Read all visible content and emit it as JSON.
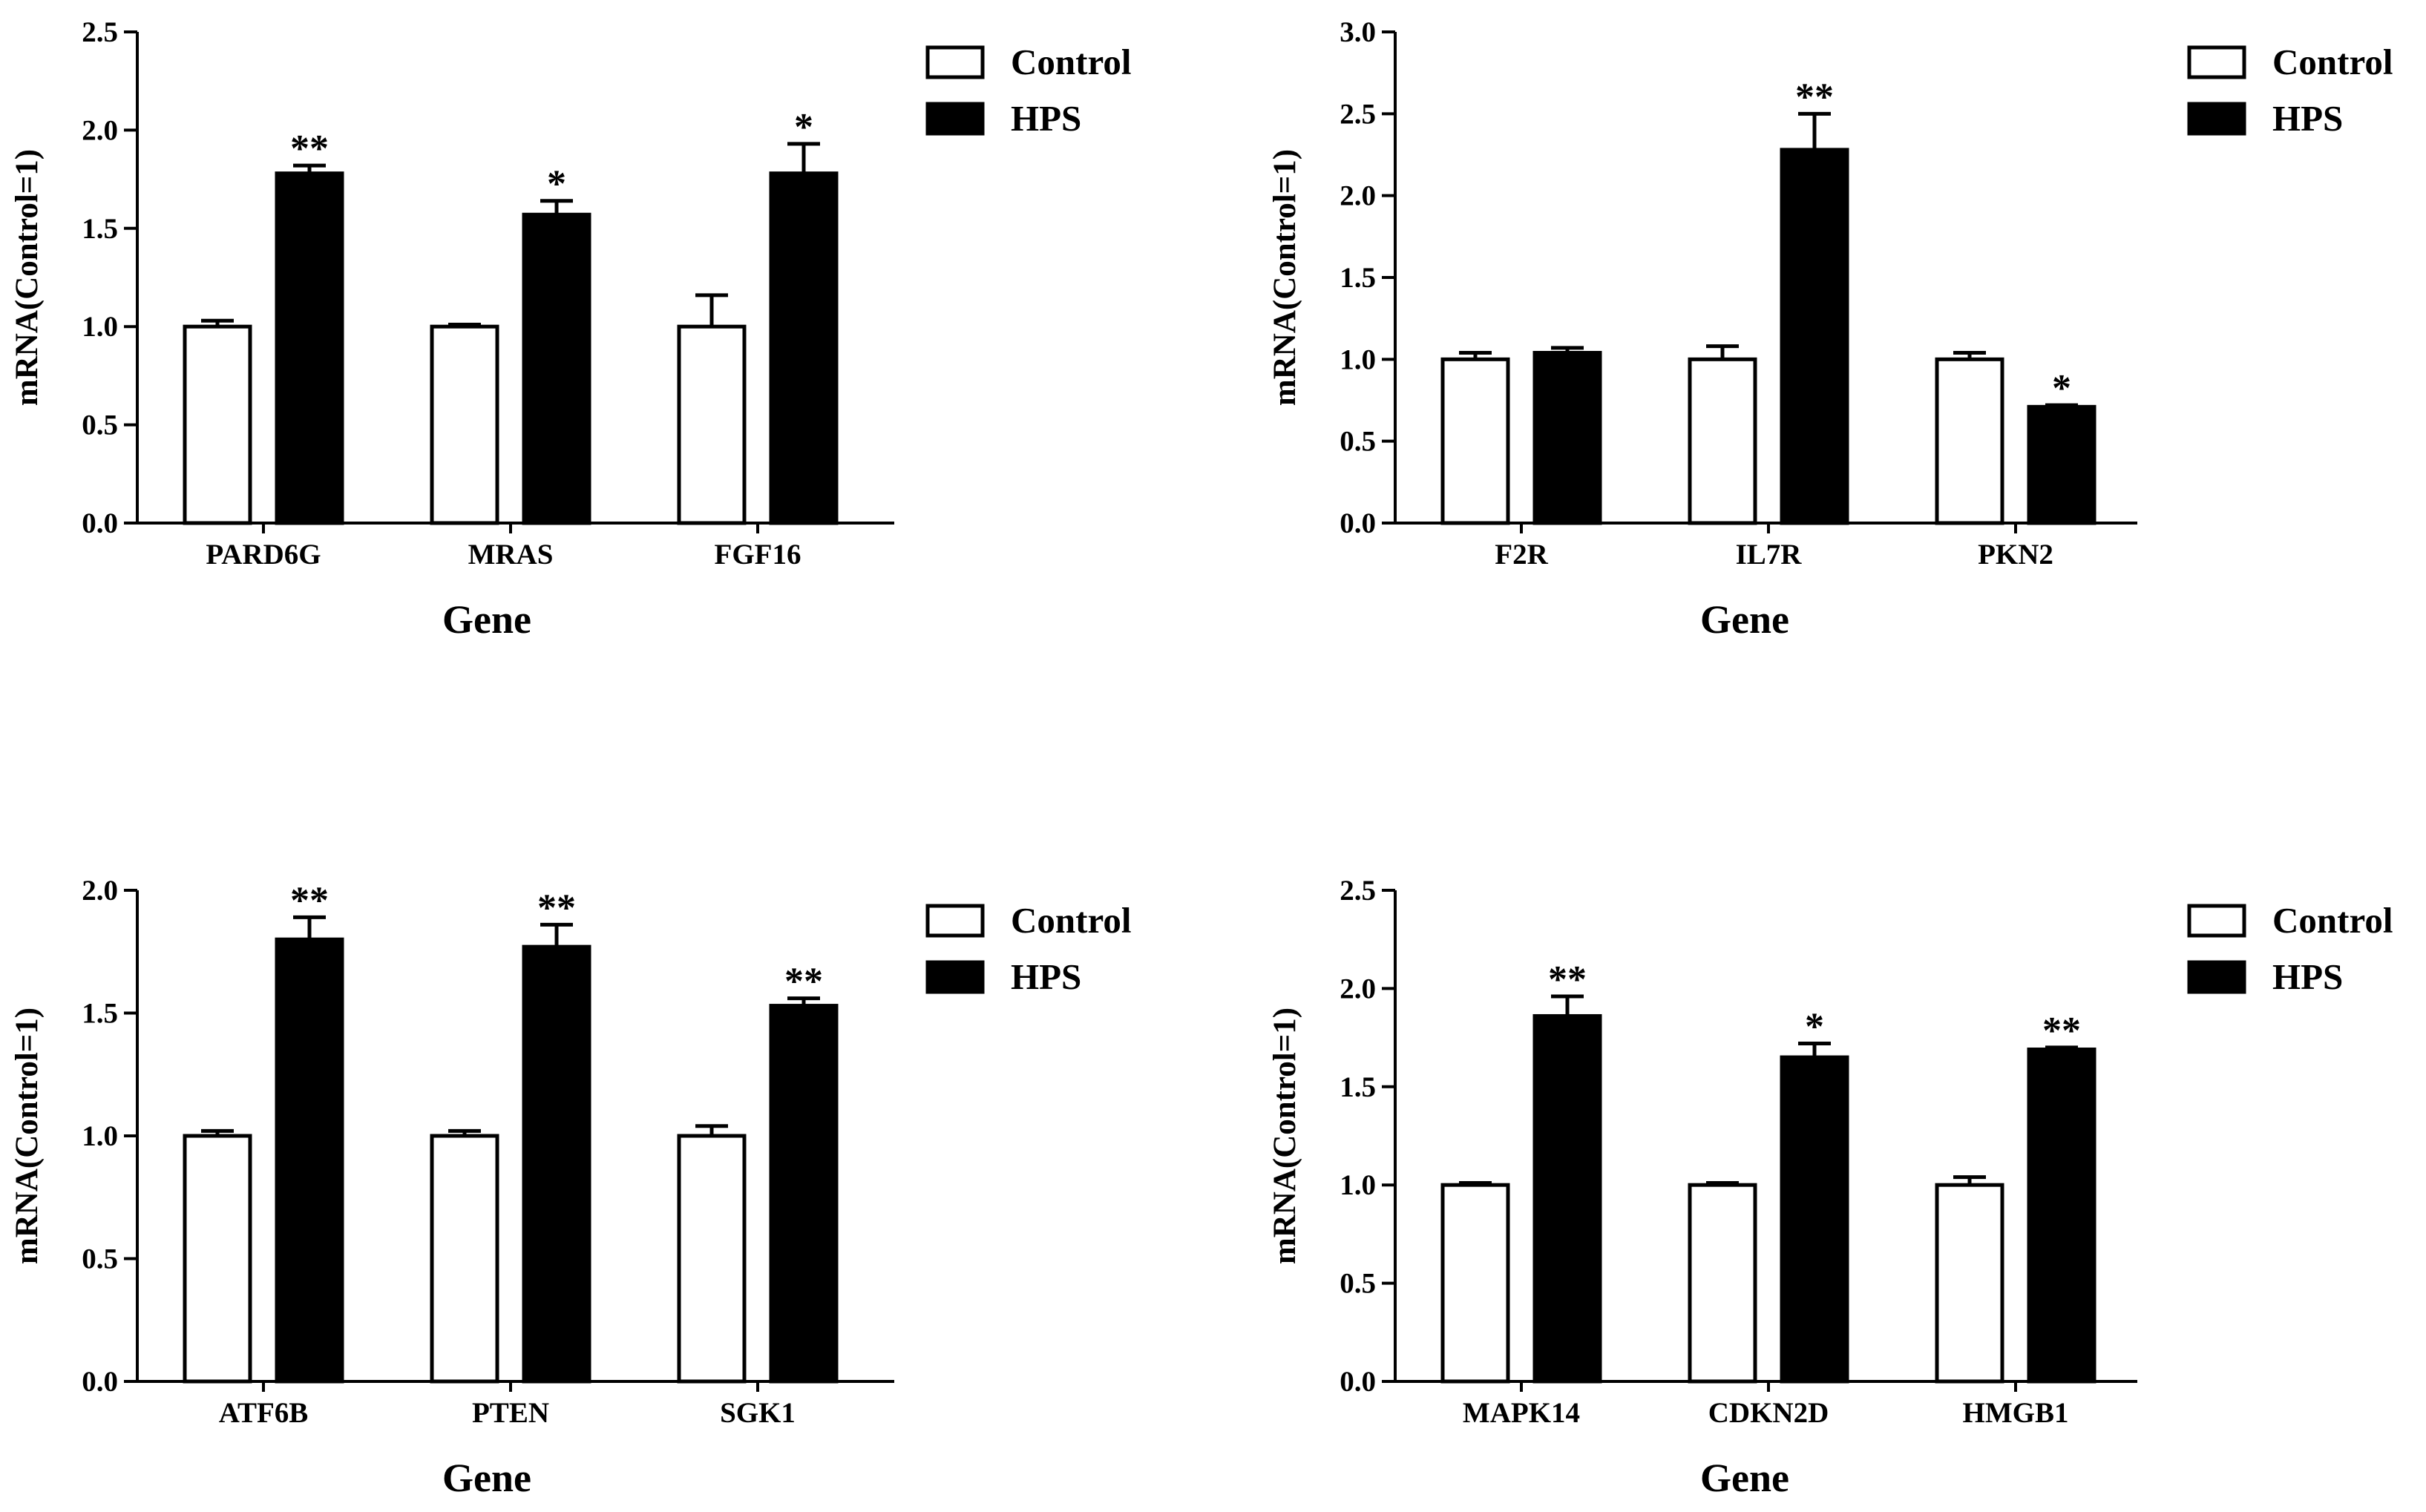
{
  "legend": {
    "control": "Control",
    "treatment": "HPS"
  },
  "colors": {
    "control_fill": "#ffffff",
    "treatment_fill": "#000000",
    "stroke": "#000000"
  },
  "chart_data": [
    {
      "type": "bar",
      "panel": "top-left",
      "categories": [
        "PARD6G",
        "MRAS",
        "FGF16"
      ],
      "series": [
        {
          "name": "Control",
          "values": [
            1.0,
            1.0,
            1.0
          ],
          "errors": [
            0.03,
            0.01,
            0.16
          ]
        },
        {
          "name": "HPS",
          "values": [
            1.78,
            1.57,
            1.78
          ],
          "errors": [
            0.04,
            0.07,
            0.15
          ]
        }
      ],
      "significance": [
        "**",
        "*",
        "*"
      ],
      "xlabel": "Gene",
      "ylabel": "mRNA(Control=1)",
      "ylim": [
        0,
        2.5
      ],
      "yticks": [
        "0.0",
        "0.5",
        "1.0",
        "1.5",
        "2.0",
        "2.5"
      ],
      "legend_position": "top-right"
    },
    {
      "type": "bar",
      "panel": "top-right",
      "categories": [
        "F2R",
        "IL7R",
        "PKN2"
      ],
      "series": [
        {
          "name": "Control",
          "values": [
            1.0,
            1.0,
            1.0
          ],
          "errors": [
            0.04,
            0.08,
            0.04
          ]
        },
        {
          "name": "HPS",
          "values": [
            1.04,
            2.28,
            0.71
          ],
          "errors": [
            0.03,
            0.22,
            0.01
          ]
        }
      ],
      "significance": [
        "",
        "**",
        "*"
      ],
      "xlabel": "Gene",
      "ylabel": "mRNA(Control=1)",
      "ylim": [
        0,
        3.0
      ],
      "yticks": [
        "0.0",
        "0.5",
        "1.0",
        "1.5",
        "2.0",
        "2.5",
        "3.0"
      ],
      "legend_position": "top-right"
    },
    {
      "type": "bar",
      "panel": "bottom-left",
      "categories": [
        "ATF6B",
        "PTEN",
        "SGK1"
      ],
      "series": [
        {
          "name": "Control",
          "values": [
            1.0,
            1.0,
            1.0
          ],
          "errors": [
            0.02,
            0.02,
            0.04
          ]
        },
        {
          "name": "HPS",
          "values": [
            1.8,
            1.77,
            1.53
          ],
          "errors": [
            0.09,
            0.09,
            0.03
          ]
        }
      ],
      "significance": [
        "**",
        "**",
        "**"
      ],
      "xlabel": "Gene",
      "ylabel": "mRNA(Control=1)",
      "ylim": [
        0,
        2.0
      ],
      "yticks": [
        "0.0",
        "0.5",
        "1.0",
        "1.5",
        "2.0"
      ],
      "legend_position": "top-right"
    },
    {
      "type": "bar",
      "panel": "bottom-right",
      "categories": [
        "MAPK14",
        "CDKN2D",
        "HMGB1"
      ],
      "series": [
        {
          "name": "Control",
          "values": [
            1.0,
            1.0,
            1.0
          ],
          "errors": [
            0.01,
            0.01,
            0.04
          ]
        },
        {
          "name": "HPS",
          "values": [
            1.86,
            1.65,
            1.69
          ],
          "errors": [
            0.1,
            0.07,
            0.01
          ]
        }
      ],
      "significance": [
        "**",
        "*",
        "**"
      ],
      "xlabel": "Gene",
      "ylabel": "mRNA(Control=1)",
      "ylim": [
        0,
        2.5
      ],
      "yticks": [
        "0.0",
        "0.5",
        "1.0",
        "1.5",
        "2.0",
        "2.5"
      ],
      "legend_position": "top-right"
    }
  ]
}
